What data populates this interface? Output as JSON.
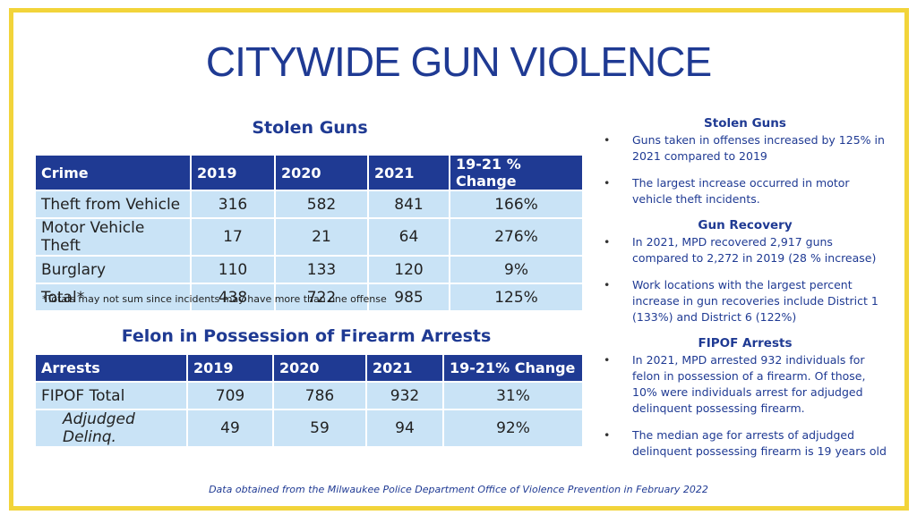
{
  "title": "CITYWIDE GUN VIOLENCE",
  "stolen_guns_table": {
    "title": "Stolen Guns",
    "headers": [
      "Crime",
      "2019",
      "2020",
      "2021",
      "19-21 % Change"
    ],
    "rows": [
      [
        "Theft from Vehicle",
        "316",
        "582",
        "841",
        "166%"
      ],
      [
        "Motor Vehicle Theft",
        "17",
        "21",
        "64",
        "276%"
      ],
      [
        "Burglary",
        "110",
        "133",
        "120",
        "9%"
      ],
      [
        "Total*",
        "438",
        "722",
        "985",
        "125%"
      ]
    ],
    "footnote": "*Totals may not sum since incidents may have more than one offense"
  },
  "fipof_table": {
    "title": "Felon in Possession of Firearm Arrests",
    "headers": [
      "Arrests",
      "2019",
      "2020",
      "2021",
      "19-21% Change"
    ],
    "rows": [
      [
        "FIPOF Total",
        "709",
        "786",
        "932",
        "31%"
      ],
      [
        "Adjudged Delinq.",
        "49",
        "59",
        "94",
        "92%"
      ]
    ]
  },
  "sidebar": {
    "sections": [
      {
        "heading": "Stolen Guns",
        "bullets": [
          "Guns taken in offenses increased by 125% in 2021 compared to 2019",
          "The largest increase occurred in motor vehicle theft incidents."
        ]
      },
      {
        "heading": "Gun Recovery",
        "bullets": [
          "In 2021, MPD recovered 2,917 guns compared to 2,272 in 2019 (28 % increase)",
          "Work locations with the largest percent increase in gun recoveries include District 1 (133%) and District 6 (122%)"
        ]
      },
      {
        "heading": "FIPOF Arrests",
        "bullets": [
          "In 2021, MPD arrested 932 individuals for felon in possession of a firearm. Of those, 10% were individuals arrest for adjudged delinquent possessing firearm.",
          "The median age for arrests of adjudged delinquent possessing firearm is 19 years old"
        ]
      }
    ],
    "bullet_glyph": "•"
  },
  "source_note": "Data obtained from the Milwaukee Police Department Office of Violence Prevention in February 2022",
  "colors": {
    "accent": "#1f3a93",
    "frame": "#f2d43a",
    "cell": "#c9e3f6"
  }
}
